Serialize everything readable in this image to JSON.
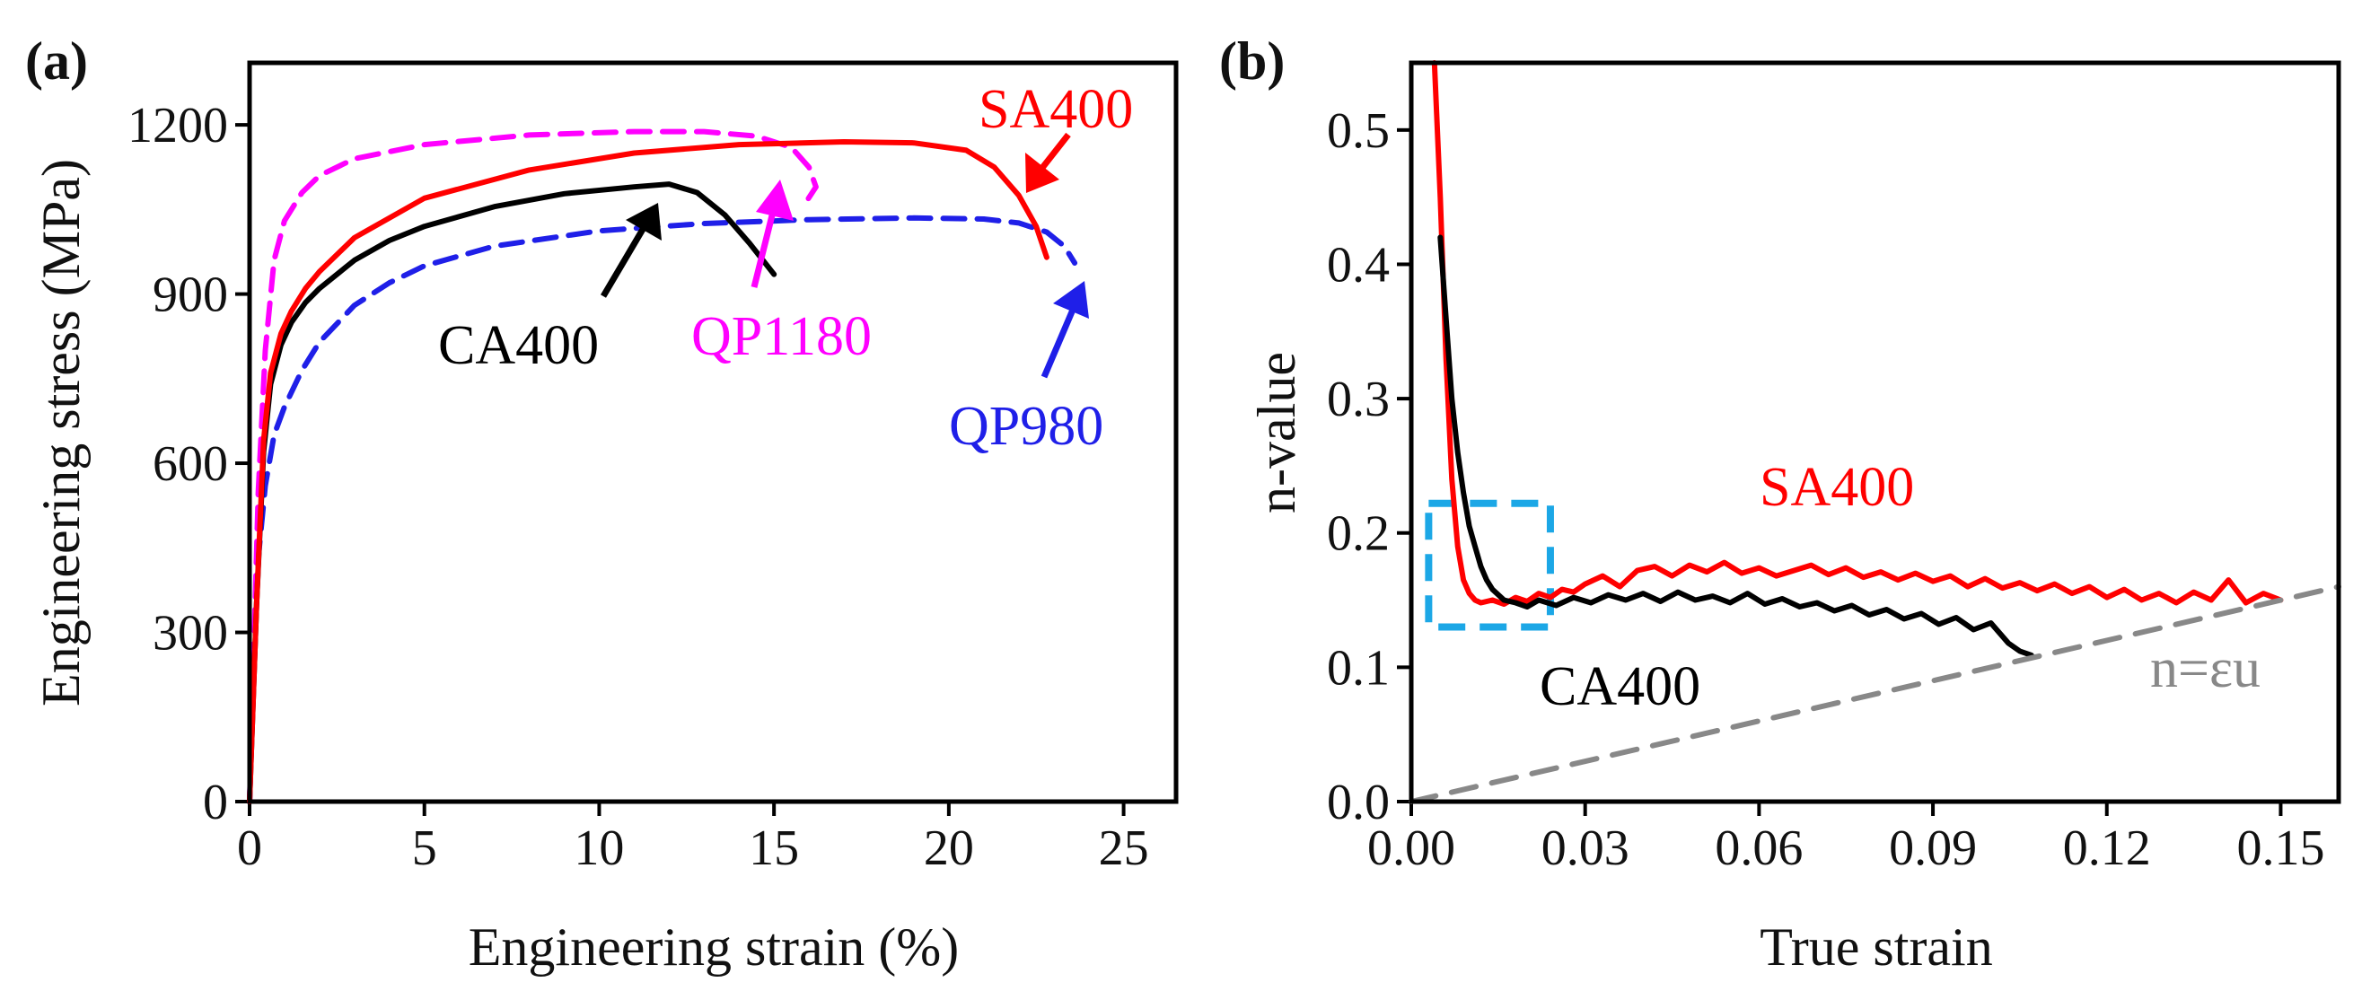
{
  "chart_data": [
    {
      "panel_label": "(a)",
      "type": "line",
      "xlabel": "Engineering strain (%)",
      "ylabel": "Engineering stress (MPa)",
      "xlim": [
        0,
        26.5
      ],
      "ylim": [
        0,
        1310
      ],
      "xticks": [
        0,
        5,
        10,
        15,
        20,
        25
      ],
      "yticks": [
        0,
        300,
        600,
        900,
        1200
      ],
      "series": [
        {
          "name": "QP980",
          "color": "#1f1fe8",
          "dash": "dashed",
          "x": [
            0,
            0.2,
            0.45,
            0.7,
            1,
            1.5,
            2,
            3,
            4,
            5,
            7,
            10,
            13,
            16,
            19,
            21,
            22,
            22.8,
            23.3,
            23.6
          ],
          "y": [
            0,
            400,
            560,
            650,
            700,
            765,
            815,
            880,
            920,
            950,
            985,
            1012,
            1025,
            1032,
            1035,
            1033,
            1026,
            1010,
            985,
            955
          ]
        },
        {
          "name": "QP1180",
          "color": "#ff00ff",
          "dash": "dashed",
          "x": [
            0,
            0.25,
            0.45,
            0.7,
            1,
            1.5,
            2,
            3,
            5,
            8,
            11,
            13,
            14.5,
            15.5,
            16,
            16.2,
            15.8
          ],
          "y": [
            0,
            550,
            800,
            960,
            1030,
            1080,
            1110,
            1140,
            1165,
            1182,
            1188,
            1188,
            1180,
            1160,
            1125,
            1090,
            1052
          ]
        },
        {
          "name": "CA400",
          "color": "#000000",
          "dash": "solid",
          "x": [
            0,
            0.2,
            0.4,
            0.6,
            0.9,
            1.2,
            1.6,
            2,
            3,
            4,
            5,
            7,
            9,
            11,
            12,
            12.8,
            13.6,
            14.3,
            15
          ],
          "y": [
            0,
            350,
            620,
            740,
            810,
            850,
            885,
            910,
            960,
            995,
            1020,
            1055,
            1078,
            1090,
            1095,
            1080,
            1040,
            990,
            935
          ]
        },
        {
          "name": "SA400",
          "color": "#ff0000",
          "dash": "solid",
          "x": [
            0,
            0.2,
            0.4,
            0.6,
            0.9,
            1.2,
            1.6,
            2,
            3,
            5,
            8,
            11,
            14,
            17,
            19,
            20.5,
            21.3,
            22,
            22.5,
            22.8
          ],
          "y": [
            0,
            350,
            640,
            760,
            830,
            870,
            910,
            940,
            1000,
            1070,
            1120,
            1150,
            1165,
            1170,
            1168,
            1155,
            1125,
            1075,
            1020,
            965
          ]
        }
      ],
      "annotations": [
        {
          "text": "SA400",
          "color": "#ff0000"
        },
        {
          "text": "CA400",
          "color": "#000000"
        },
        {
          "text": "QP1180",
          "color": "#ff00ff"
        },
        {
          "text": "QP980",
          "color": "#1f1fe8"
        }
      ]
    },
    {
      "panel_label": "(b)",
      "type": "line",
      "xlabel": "True strain",
      "ylabel": "n-value",
      "xlim": [
        0,
        0.16
      ],
      "ylim": [
        0,
        0.55
      ],
      "xticks": [
        0.0,
        0.03,
        0.06,
        0.09,
        0.12,
        0.15
      ],
      "xtick_labels": [
        "0.00",
        "0.03",
        "0.06",
        "0.09",
        "0.12",
        "0.15"
      ],
      "yticks": [
        0.0,
        0.1,
        0.2,
        0.3,
        0.4,
        0.5
      ],
      "ytick_labels": [
        "0.0",
        "0.1",
        "0.2",
        "0.3",
        "0.4",
        "0.5"
      ],
      "series": [
        {
          "name": "SA400",
          "color": "#ff0000",
          "dash": "solid",
          "x": [
            0.004,
            0.005,
            0.006,
            0.007,
            0.008,
            0.009,
            0.01,
            0.011,
            0.012,
            0.014,
            0.016,
            0.018,
            0.02,
            0.022,
            0.024,
            0.026,
            0.028,
            0.03,
            0.033,
            0.036,
            0.039,
            0.042,
            0.045,
            0.048,
            0.051,
            0.054,
            0.057,
            0.06,
            0.063,
            0.066,
            0.069,
            0.072,
            0.075,
            0.078,
            0.081,
            0.084,
            0.087,
            0.09,
            0.093,
            0.096,
            0.099,
            0.102,
            0.105,
            0.108,
            0.111,
            0.114,
            0.117,
            0.12,
            0.123,
            0.126,
            0.129,
            0.132,
            0.135,
            0.138,
            0.141,
            0.144,
            0.147,
            0.15
          ],
          "y": [
            0.55,
            0.45,
            0.33,
            0.24,
            0.19,
            0.165,
            0.155,
            0.15,
            0.148,
            0.15,
            0.147,
            0.152,
            0.149,
            0.155,
            0.152,
            0.158,
            0.156,
            0.162,
            0.168,
            0.16,
            0.172,
            0.175,
            0.168,
            0.176,
            0.171,
            0.178,
            0.17,
            0.174,
            0.168,
            0.172,
            0.176,
            0.169,
            0.174,
            0.167,
            0.171,
            0.165,
            0.17,
            0.164,
            0.168,
            0.16,
            0.166,
            0.159,
            0.163,
            0.157,
            0.162,
            0.155,
            0.16,
            0.152,
            0.158,
            0.15,
            0.155,
            0.148,
            0.156,
            0.15,
            0.165,
            0.148,
            0.155,
            0.15
          ]
        },
        {
          "name": "CA400",
          "color": "#000000",
          "dash": "solid",
          "x": [
            0.005,
            0.006,
            0.007,
            0.008,
            0.009,
            0.01,
            0.011,
            0.012,
            0.013,
            0.014,
            0.016,
            0.018,
            0.02,
            0.022,
            0.025,
            0.028,
            0.031,
            0.034,
            0.037,
            0.04,
            0.043,
            0.046,
            0.049,
            0.052,
            0.055,
            0.058,
            0.061,
            0.064,
            0.067,
            0.07,
            0.073,
            0.076,
            0.079,
            0.082,
            0.085,
            0.088,
            0.091,
            0.094,
            0.097,
            0.1,
            0.103,
            0.105,
            0.107
          ],
          "y": [
            0.42,
            0.36,
            0.3,
            0.26,
            0.23,
            0.205,
            0.19,
            0.175,
            0.165,
            0.158,
            0.15,
            0.148,
            0.145,
            0.15,
            0.146,
            0.152,
            0.148,
            0.154,
            0.15,
            0.155,
            0.149,
            0.156,
            0.15,
            0.153,
            0.148,
            0.155,
            0.147,
            0.151,
            0.145,
            0.148,
            0.142,
            0.146,
            0.139,
            0.143,
            0.136,
            0.14,
            0.132,
            0.137,
            0.128,
            0.133,
            0.118,
            0.112,
            0.109
          ]
        },
        {
          "name": "n=εu",
          "color": "#888888",
          "dash": "dashed",
          "x": [
            0,
            0.16
          ],
          "y": [
            0,
            0.16
          ]
        }
      ],
      "annotations": [
        {
          "text": "SA400",
          "color": "#ff0000"
        },
        {
          "text": "CA400",
          "color": "#000000"
        },
        {
          "text": "n=εu",
          "color": "#888888"
        }
      ],
      "highlight_box": {
        "x": [
          0.003,
          0.024
        ],
        "y": [
          0.13,
          0.222
        ],
        "color": "#1ca7e6"
      }
    }
  ]
}
